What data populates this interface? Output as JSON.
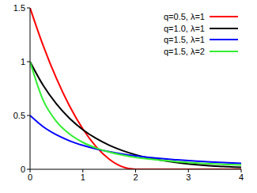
{
  "chart_data": {
    "type": "line",
    "x": [
      0,
      0.25,
      0.5,
      0.75,
      1,
      1.25,
      1.5,
      1.75,
      2,
      2.25,
      2.5,
      2.75,
      3,
      3.25,
      3.5,
      3.75,
      4
    ],
    "series": [
      {
        "name": "q=0.5, λ=1",
        "color": "#ff0000",
        "values": [
          1.5,
          1.148,
          0.844,
          0.586,
          0.375,
          0.211,
          0.094,
          0.023,
          0,
          0,
          0,
          0,
          0,
          0,
          0,
          0,
          0
        ]
      },
      {
        "name": "q=1.0, λ=1",
        "color": "#000000",
        "values": [
          1,
          0.779,
          0.607,
          0.472,
          0.368,
          0.287,
          0.223,
          0.174,
          0.135,
          0.105,
          0.082,
          0.064,
          0.05,
          0.039,
          0.03,
          0.024,
          0.018
        ]
      },
      {
        "name": "q=1.5, λ=1",
        "color": "#0000ff",
        "values": [
          0.5,
          0.395,
          0.32,
          0.264,
          0.222,
          0.189,
          0.163,
          0.142,
          0.125,
          0.111,
          0.099,
          0.089,
          0.08,
          0.073,
          0.066,
          0.06,
          0.056
        ]
      },
      {
        "name": "q=1.5, λ=2",
        "color": "#33ee33",
        "values": [
          1,
          0.64,
          0.444,
          0.327,
          0.25,
          0.198,
          0.16,
          0.132,
          0.111,
          0.095,
          0.082,
          0.071,
          0.063,
          0.055,
          0.049,
          0.044,
          0.04
        ]
      }
    ],
    "xlim": [
      0,
      4
    ],
    "ylim": [
      0,
      1.5
    ],
    "xticks": [
      0,
      1,
      2,
      3,
      4
    ],
    "yticks": [
      0,
      0.5,
      1,
      1.5
    ],
    "grid": false,
    "legend": "top-right"
  }
}
